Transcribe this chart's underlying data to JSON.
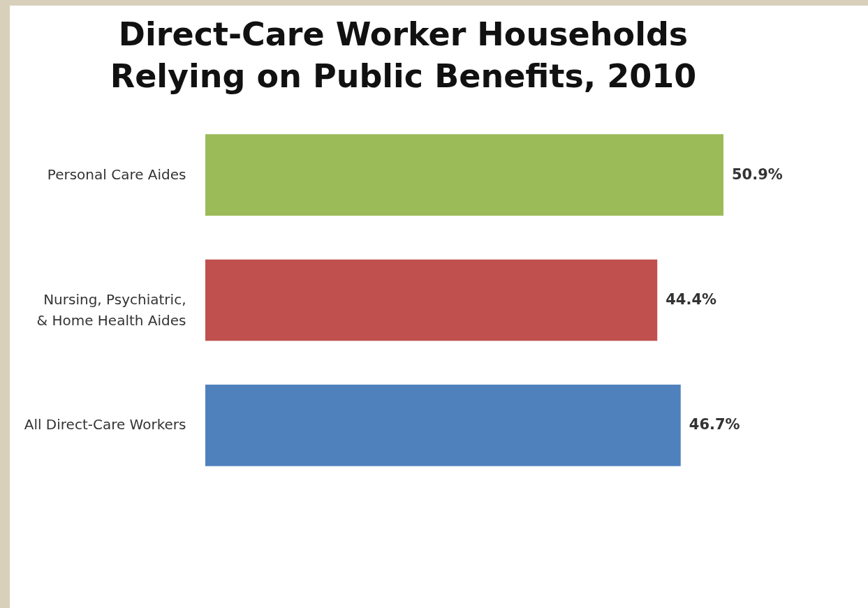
{
  "chart_data": {
    "type": "bar",
    "orientation": "horizontal",
    "title": "Direct-Care Worker Households Relying on Public Benefits, 2010",
    "categories": [
      "Personal Care Aides",
      "Nursing, Psychiatric, & Home Health Aides",
      "All Direct-Care Workers"
    ],
    "values": [
      50.9,
      44.4,
      46.7
    ],
    "colors": [
      "#9bbb59",
      "#c0504d",
      "#4f81bd"
    ],
    "value_labels": [
      "50.9%",
      "44.4%",
      "46.7%"
    ],
    "tick_labels": "y"
  }
}
